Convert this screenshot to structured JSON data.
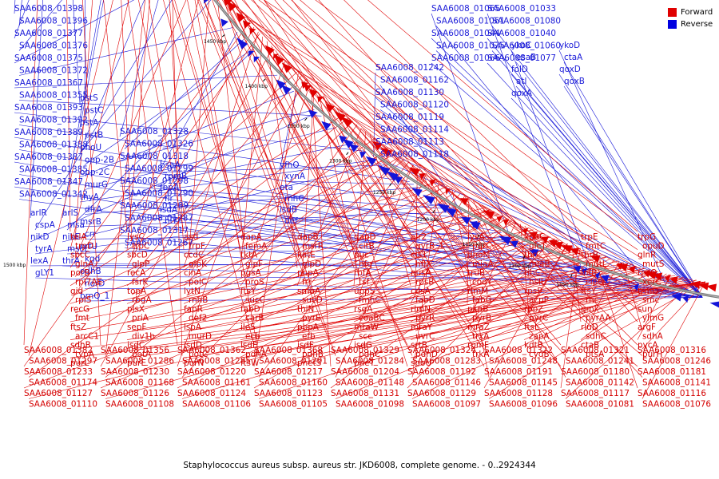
{
  "caption": "Staphylococcus aureus subsp. aureus str. JKD6008, complete genome. - 0..2924344",
  "legend": {
    "forward_label": "Forward",
    "reverse_label": "Reverse",
    "forward_color": "#e00000",
    "reverse_color": "#0000e0"
  },
  "ticks": [
    "1050 kbp",
    "1100 kbp",
    "1150 kbp",
    "1200 kbp",
    "1250 kbp",
    "1300 kbp",
    "1350 kbp",
    "1400 kbp",
    "1450 kbp",
    "1500 kbp"
  ],
  "reverse_labels": [
    "SAA6008_01398",
    "SAA6008_01396",
    "SAA6008_01377",
    "SAA6008_01376",
    "SAA6008_01375",
    "SAA6008_01372",
    "SAA6008_01367",
    "SAA6008_01355",
    "SAA6008_01393",
    "SAA6008_01392",
    "SAA6008_01389",
    "SAA6008_01388",
    "SAA6008_01387",
    "SAA6008_01385",
    "SAA6008_01347",
    "SAA6008_01342",
    "SAA6008_01328",
    "SAA6008_01326",
    "SAA6008_01318",
    "SAA6008_01299",
    "SAA6008_01298",
    "SAA6008_01290",
    "SAA6008_01289",
    "SAA6008_01287",
    "SAA6008_01317",
    "SAA6008_01267",
    "SAA6008_01242",
    "SAA6008_01162",
    "SAA6008_01130",
    "SAA6008_01120",
    "SAA6008_01119",
    "SAA6008_01114",
    "SAA6008_01113",
    "SAA6008_01118",
    "SAA6008_01065",
    "SAA6008_01033",
    "SAA6008_01061",
    "SAA6008_01080",
    "SAA6008_01044",
    "SAA6008_01040",
    "SAA6008_01075",
    "SAA6008_01060",
    "SAA6008_01066",
    "SAA6008_01077",
    "pstS",
    "pstC",
    "pstA",
    "pstB",
    "phoU",
    "opp-2B",
    "opp-2C",
    "murG",
    "thyA",
    "dfrA",
    "msrB",
    "crr",
    "nrfU",
    "kgd",
    "odhB",
    "norD",
    "brnQ_1",
    "arlR",
    "arlS",
    "cspA",
    "msa",
    "nikD",
    "nikE",
    "tyrA",
    "mscL",
    "lexA",
    "thrA",
    "gLY1",
    "bsaA",
    "yfhO",
    "rpmB",
    "xynA",
    "fbpA",
    "eta",
    "flr",
    "rnhC",
    "isdA",
    "isdB",
    "hlY",
    "def",
    "ykoC",
    "ykoD",
    "esaB",
    "ctaA",
    "folD",
    "qoxD",
    "atl",
    "qoxB",
    "qoxA"
  ],
  "forward_labels": [
    "SAA6008_01382",
    "SAA6008_01356",
    "SAA6008_01362",
    "SAA6008_01368",
    "SAA6008_01329",
    "SAA6008_01324",
    "SAA6008_01322",
    "SAA6008_01321",
    "SAA6008_01316",
    "SAA6008_01297",
    "SAA6008_01286",
    "SAA6008_01285",
    "SAA6008_01291",
    "SAA6008_01284",
    "SAA6008_01283",
    "SAA6008_01248",
    "SAA6008_01241",
    "SAA6008_01246",
    "SAA6008_01233",
    "SAA6008_01230",
    "SAA6008_01220",
    "SAA6008_01217",
    "SAA6008_01204",
    "SAA6008_01192",
    "SAA6008_01191",
    "SAA6008_01180",
    "SAA6008_01181",
    "SAA6008_01174",
    "SAA6008_01168",
    "SAA6008_01161",
    "SAA6008_01160",
    "SAA6008_01148",
    "SAA6008_01146",
    "SAA6008_01145",
    "SAA6008_01142",
    "SAA6008_01141",
    "SAA6008_01127",
    "SAA6008_01126",
    "SAA6008_01124",
    "SAA6008_01123",
    "SAA6008_01131",
    "SAA6008_01129",
    "SAA6008_01128",
    "SAA6008_01117",
    "SAA6008_01116",
    "SAA6008_01110",
    "SAA6008_01108",
    "SAA6008_01106",
    "SAA6008_01105",
    "SAA6008_01098",
    "SAA6008_01097",
    "SAA6008_01096",
    "SAA6008_01081",
    "SAA6008_01076",
    "telA",
    "lysC",
    "asd",
    "dapA",
    "dapB",
    "dapD",
    "alr2",
    "lysA",
    "xpaC",
    "trpE",
    "trpG",
    "trpD",
    "trpC",
    "trpF",
    "femA",
    "msrR",
    "citB",
    "gyrB_1",
    "parC",
    "glcT",
    "fmtC",
    "opuD",
    "sbcC",
    "sbcD",
    "ccdC",
    "tktA",
    "katE",
    "nuc",
    "cls1",
    "dhoM",
    "thrC",
    "thrB",
    "glnR",
    "glnA",
    "glpP",
    "glpK",
    "glpF",
    "glpD",
    "hfq",
    "hflX",
    "miaA",
    "miaB",
    "mutL",
    "mutS",
    "porB",
    "recA",
    "cinA",
    "pgsA",
    "pnpA",
    "rbfA",
    "nusA",
    "truB",
    "ribC",
    "infB",
    "rpsO",
    "rpl7AE",
    "fsrK",
    "polC",
    "proS",
    "frr",
    "tsf",
    "rpsB",
    "codY",
    "hslU",
    "clpQ",
    "xerC",
    "gid",
    "topA",
    "lytN",
    "ftsY",
    "smbA",
    "uppS",
    "cdsA",
    "rimM",
    "rpsP",
    "ftsY",
    "trmD",
    "rplS",
    "rbgA",
    "rnhB",
    "sucC",
    "sucD",
    "fmhC",
    "fabD",
    "fabG",
    "acpP",
    "rnc",
    "smc",
    "recG",
    "plsX",
    "fapR",
    "fabD",
    "thiN",
    "rsgA",
    "rlmN",
    "pknB",
    "rpoZ",
    "gmk",
    "sun",
    "fmt",
    "priA",
    "def2",
    "carB",
    "pyrE",
    "coaBC",
    "pyrR",
    "pyrB",
    "pyrC",
    "pyrAA",
    "ylmG",
    "ftsZ",
    "sepF",
    "lspA",
    "ileS",
    "pbpA",
    "mraW",
    "mraY",
    "mraZ",
    "ftsL",
    "rluD",
    "argF",
    "arcC1",
    "div1b",
    "murD",
    "ecb",
    "efb",
    "scc",
    "uvrC",
    "trxA",
    "zapA",
    "sdhC",
    "sdhA",
    "sdhB",
    "isdC",
    "isdD",
    "isdE",
    "isdF",
    "isdG",
    "srtB",
    "rpmF",
    "kdtB",
    "ctaB",
    "pycA",
    "typA",
    "potA",
    "potC",
    "pdhA",
    "pdhB",
    "pdhC",
    "pdhD",
    "trkA",
    "cydB",
    "ptsA",
    "purH",
    "purL",
    "purE",
    "purN",
    "ftsW",
    "phetS",
    "pheT",
    "spoU"
  ]
}
